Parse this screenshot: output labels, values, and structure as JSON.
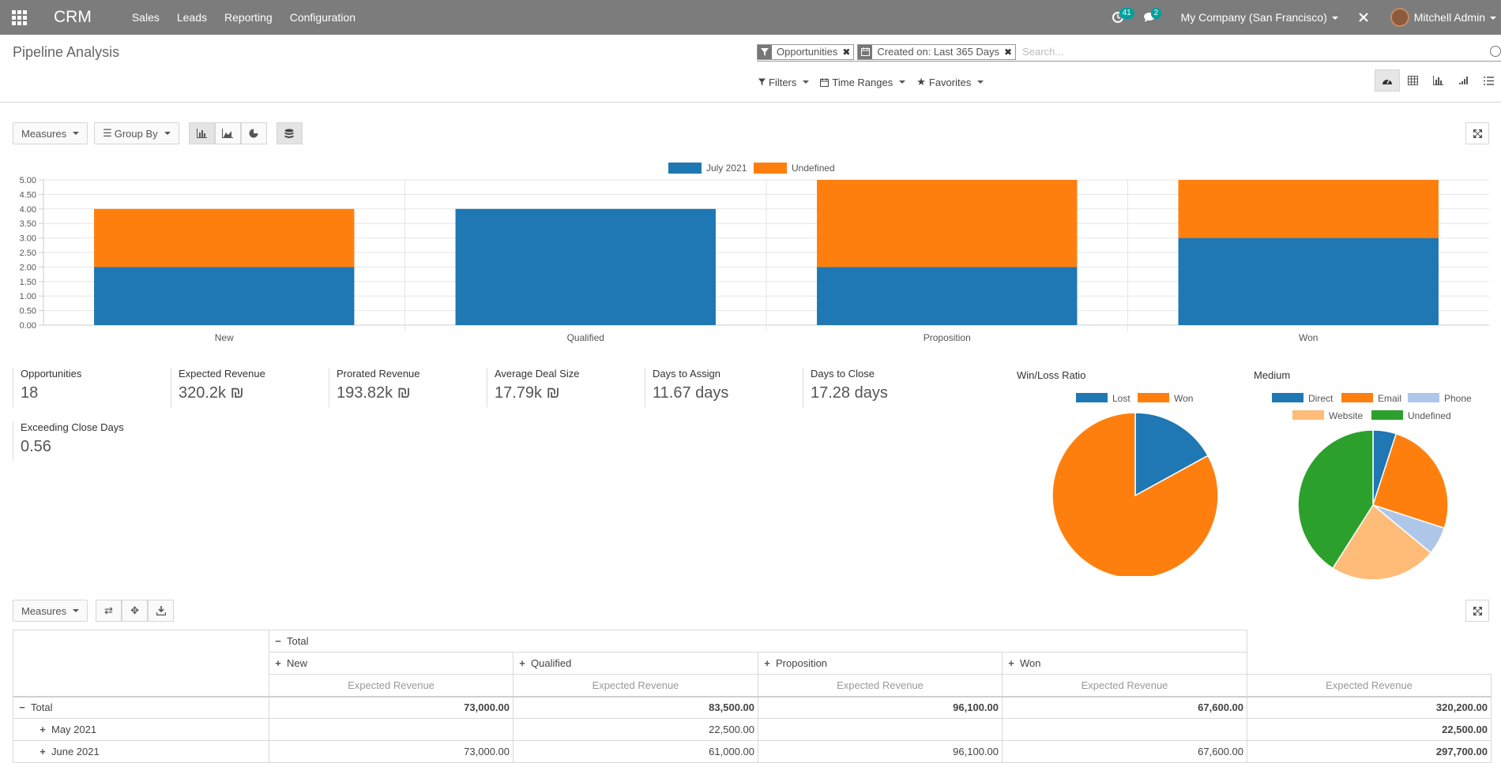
{
  "navbar": {
    "brand": "CRM",
    "menu": [
      "Sales",
      "Leads",
      "Reporting",
      "Configuration"
    ],
    "activity_count": "41",
    "message_count": "2",
    "company": "My Company (San Francisco)",
    "user": "Mitchell Admin"
  },
  "control_panel": {
    "title": "Pipeline Analysis",
    "facets": [
      {
        "label": "Opportunities",
        "icon": "filter-icon"
      },
      {
        "label": "Created on: Last 365 Days",
        "icon": "calendar-icon"
      }
    ],
    "search_placeholder": "Search...",
    "filters_label": "Filters",
    "time_ranges_label": "Time Ranges",
    "favorites_label": "Favorites"
  },
  "toolbar": {
    "measures_label": "Measures",
    "group_by_label": "Group By"
  },
  "colors": {
    "blue": "#1f77b4",
    "orange": "#ff7f0e",
    "light_blue": "#aec7e8",
    "light_orange": "#ffbb78",
    "green": "#2ca02c"
  },
  "chart_data": [
    {
      "type": "bar",
      "stacked": true,
      "categories": [
        "New",
        "Qualified",
        "Proposition",
        "Won"
      ],
      "series": [
        {
          "name": "July 2021",
          "values": [
            2,
            4,
            2,
            3
          ]
        },
        {
          "name": "Undefined",
          "values": [
            2,
            0,
            3,
            2
          ]
        }
      ],
      "y_ticks": [
        "0.00",
        "0.50",
        "1.00",
        "1.50",
        "2.00",
        "2.50",
        "3.00",
        "3.50",
        "4.00",
        "4.50",
        "5.00"
      ],
      "ylim": [
        0,
        5
      ],
      "legend": "top-center",
      "grid": true
    },
    {
      "type": "pie",
      "title": "Win/Loss Ratio",
      "labels": [
        "Lost",
        "Won"
      ],
      "values": [
        17,
        83
      ]
    },
    {
      "type": "pie",
      "title": "Medium",
      "labels": [
        "Direct",
        "Email",
        "Phone",
        "Website",
        "Undefined"
      ],
      "values": [
        5,
        25,
        6,
        23,
        41
      ]
    }
  ],
  "aggregates": [
    {
      "label": "Opportunities",
      "value": "18"
    },
    {
      "label": "Expected Revenue",
      "value": "320.2k ₪"
    },
    {
      "label": "Prorated Revenue",
      "value": "193.82k ₪"
    },
    {
      "label": "Average Deal Size",
      "value": "17.79k ₪"
    },
    {
      "label": "Days to Assign",
      "value": "11.67 days"
    },
    {
      "label": "Days to Close",
      "value": "17.28 days"
    },
    {
      "label": "Exceeding Close Days",
      "value": "0.56"
    }
  ],
  "pivot": {
    "measures_label": "Measures",
    "total_label": "Total",
    "columns": [
      "New",
      "Qualified",
      "Proposition",
      "Won"
    ],
    "measure_label": "Expected Revenue",
    "rows": [
      {
        "label": "Total",
        "values": [
          "73,000.00",
          "83,500.00",
          "96,100.00",
          "67,600.00"
        ],
        "total": "320,200.00"
      },
      {
        "label": "May 2021",
        "values": [
          "",
          "22,500.00",
          "",
          ""
        ],
        "total": "22,500.00"
      },
      {
        "label": "June 2021",
        "values": [
          "73,000.00",
          "61,000.00",
          "96,100.00",
          "67,600.00"
        ],
        "total": "297,700.00"
      }
    ]
  }
}
